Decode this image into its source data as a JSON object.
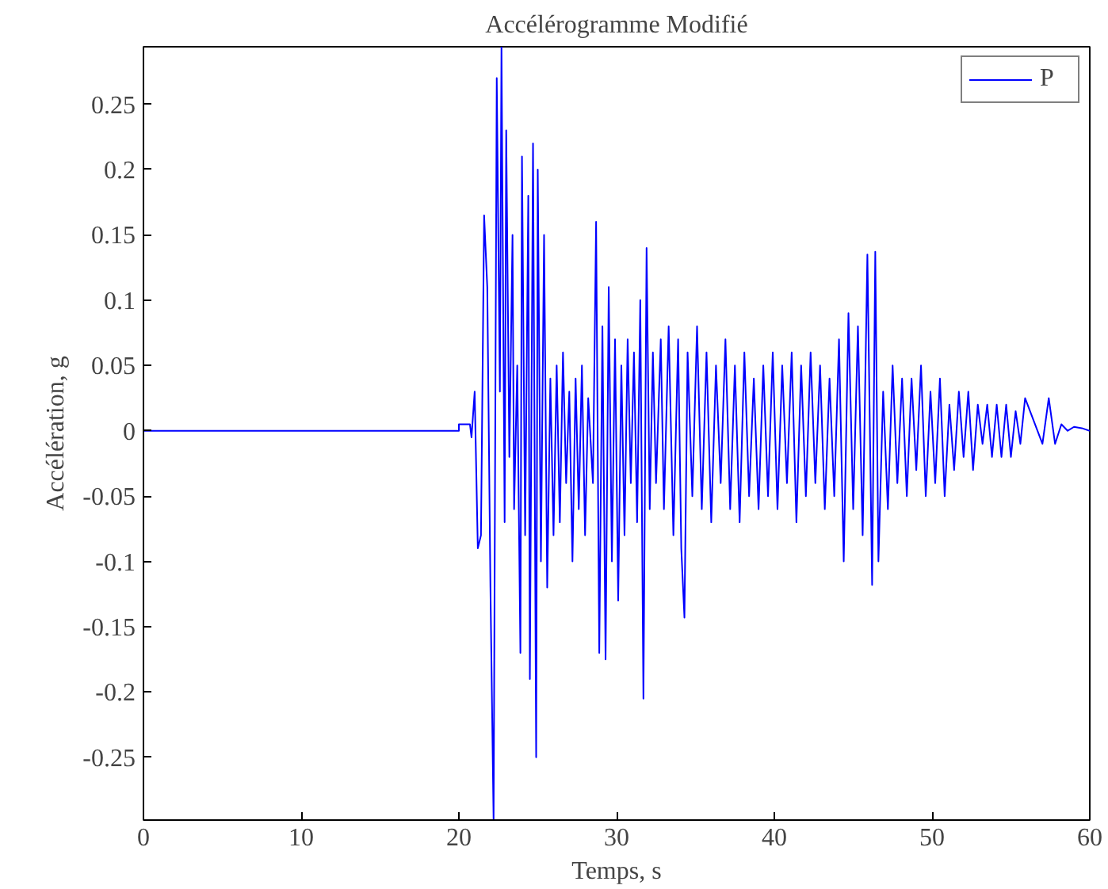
{
  "chart_data": {
    "type": "line",
    "title": "Accélérogramme Modifié",
    "xlabel": "Temps, s",
    "ylabel": "Accélération, g",
    "xlim": [
      0,
      60
    ],
    "ylim": [
      -0.298,
      0.294
    ],
    "xticks": [
      0,
      10,
      20,
      30,
      40,
      50,
      60
    ],
    "yticks": [
      -0.25,
      -0.2,
      -0.15,
      -0.1,
      -0.05,
      0,
      0.05,
      0.1,
      0.15,
      0.2,
      0.25
    ],
    "grid": false,
    "legend": "top right",
    "series": [
      {
        "name": "P",
        "color": "#0000ff",
        "x": [
          0,
          20,
          20,
          20.7,
          20.8,
          21.0,
          21.2,
          21.4,
          21.6,
          21.8,
          22.0,
          22.2,
          22.4,
          22.6,
          22.7,
          22.9,
          23.0,
          23.2,
          23.4,
          23.5,
          23.7,
          23.9,
          24.0,
          24.2,
          24.4,
          24.5,
          24.7,
          24.9,
          25.0,
          25.2,
          25.4,
          25.6,
          25.8,
          26.0,
          26.2,
          26.4,
          26.6,
          26.8,
          27.0,
          27.2,
          27.4,
          27.6,
          27.8,
          28.0,
          28.2,
          28.5,
          28.7,
          28.9,
          29.1,
          29.3,
          29.5,
          29.7,
          29.9,
          30.1,
          30.3,
          30.5,
          30.7,
          30.9,
          31.1,
          31.3,
          31.5,
          31.7,
          31.9,
          32.1,
          32.3,
          32.5,
          32.8,
          33.0,
          33.3,
          33.6,
          33.9,
          34.1,
          34.3,
          34.5,
          34.8,
          35.1,
          35.4,
          35.7,
          36.0,
          36.3,
          36.6,
          36.9,
          37.2,
          37.5,
          37.8,
          38.1,
          38.4,
          38.7,
          39.0,
          39.3,
          39.6,
          39.9,
          40.2,
          40.5,
          40.8,
          41.1,
          41.4,
          41.7,
          42.0,
          42.3,
          42.6,
          42.9,
          43.2,
          43.5,
          43.8,
          44.1,
          44.4,
          44.7,
          45.0,
          45.3,
          45.6,
          45.9,
          46.2,
          46.4,
          46.6,
          46.9,
          47.2,
          47.5,
          47.8,
          48.1,
          48.4,
          48.7,
          49.0,
          49.3,
          49.6,
          49.9,
          50.2,
          50.5,
          50.8,
          51.1,
          51.4,
          51.7,
          52.0,
          52.3,
          52.6,
          52.9,
          53.2,
          53.5,
          53.8,
          54.1,
          54.4,
          54.7,
          55.0,
          55.3,
          55.6,
          55.9,
          57.0,
          57.4,
          57.8,
          58.2,
          58.6,
          59.0,
          59.5,
          60
        ],
        "values": [
          0,
          0,
          0.005,
          0.005,
          -0.005,
          0.03,
          -0.09,
          -0.08,
          0.165,
          0.11,
          -0.12,
          -0.298,
          0.27,
          0.03,
          0.294,
          -0.07,
          0.23,
          -0.02,
          0.15,
          -0.06,
          0.05,
          -0.17,
          0.21,
          -0.08,
          0.18,
          -0.19,
          0.22,
          -0.25,
          0.2,
          -0.1,
          0.15,
          -0.12,
          0.04,
          -0.08,
          0.05,
          -0.07,
          0.06,
          -0.04,
          0.03,
          -0.1,
          0.04,
          -0.06,
          0.05,
          -0.08,
          0.025,
          -0.04,
          0.16,
          -0.17,
          0.08,
          -0.175,
          0.11,
          -0.1,
          0.07,
          -0.13,
          0.05,
          -0.08,
          0.07,
          -0.04,
          0.06,
          -0.07,
          0.1,
          -0.205,
          0.14,
          -0.06,
          0.06,
          -0.04,
          0.07,
          -0.06,
          0.08,
          -0.08,
          0.07,
          -0.09,
          -0.143,
          0.06,
          -0.05,
          0.08,
          -0.06,
          0.06,
          -0.07,
          0.05,
          -0.04,
          0.07,
          -0.06,
          0.05,
          -0.07,
          0.06,
          -0.05,
          0.04,
          -0.06,
          0.05,
          -0.05,
          0.06,
          -0.06,
          0.05,
          -0.04,
          0.06,
          -0.07,
          0.05,
          -0.05,
          0.06,
          -0.04,
          0.05,
          -0.06,
          0.04,
          -0.05,
          0.07,
          -0.1,
          0.09,
          -0.06,
          0.08,
          -0.08,
          0.135,
          -0.118,
          0.137,
          -0.1,
          0.03,
          -0.06,
          0.05,
          -0.04,
          0.04,
          -0.05,
          0.04,
          -0.03,
          0.05,
          -0.05,
          0.03,
          -0.04,
          0.04,
          -0.05,
          0.02,
          -0.03,
          0.03,
          -0.02,
          0.03,
          -0.03,
          0.02,
          -0.01,
          0.02,
          -0.02,
          0.02,
          -0.02,
          0.02,
          -0.02,
          0.015,
          -0.01,
          0.025,
          -0.01,
          0.025,
          -0.01,
          0.005,
          0.0,
          0.003,
          0.002,
          0.0
        ]
      }
    ]
  }
}
